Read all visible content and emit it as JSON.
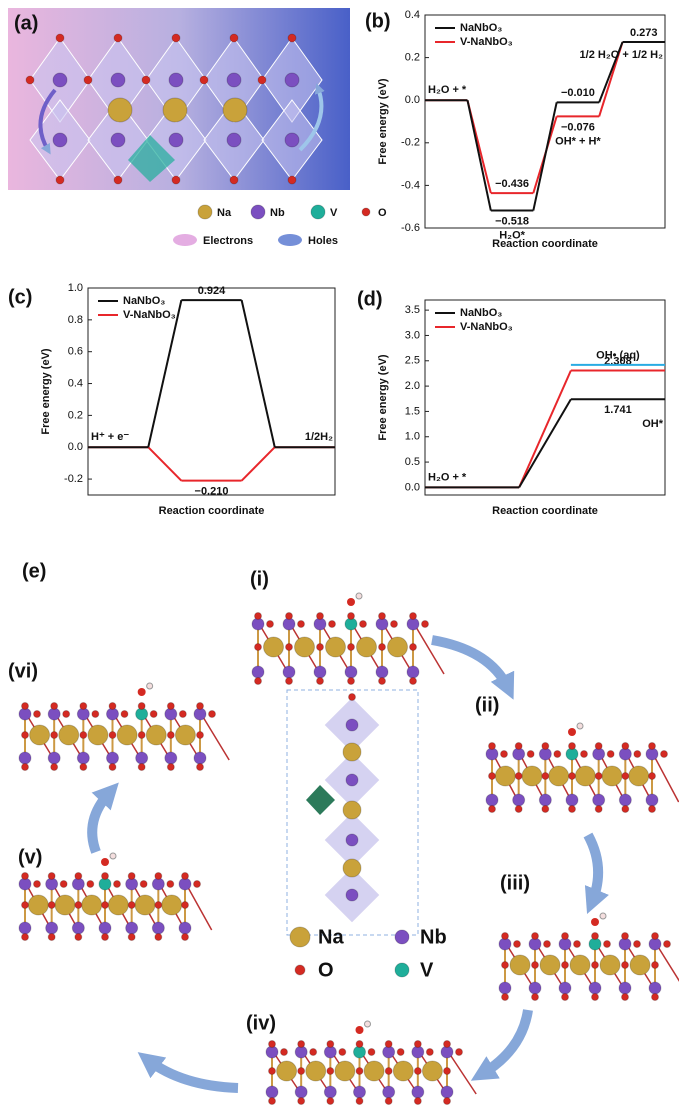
{
  "figure": {
    "a": {
      "label": "(a)",
      "legend": [
        "Na",
        "Nb",
        "V",
        "O"
      ],
      "carriers": [
        "Electrons",
        "Holes"
      ]
    },
    "e": {
      "label": "(e)",
      "steps": [
        "(i)",
        "(ii)",
        "(iii)",
        "(iv)",
        "(v)",
        "(vi)"
      ],
      "legend": [
        "Na",
        "Nb",
        "O",
        "V"
      ]
    }
  },
  "chart_data": [
    {
      "type": "step",
      "label": "(b)",
      "ylabel": "Free energy (eV)",
      "xlabel": "Reaction coordinate",
      "categories": [
        "H₂O + *",
        "H₂O*",
        "OH* + H*",
        "1/2 H₂O + 1/2 H₂"
      ],
      "series": [
        {
          "name": "NaNbO₃",
          "color": "#111111",
          "values": [
            0,
            -0.518,
            -0.01,
            0.273
          ],
          "value_labels": [
            null,
            "−0.518",
            "−0.010",
            "0.273"
          ]
        },
        {
          "name": "V-NaNbO₃",
          "color": "#e8262b",
          "values": [
            0,
            -0.436,
            -0.076,
            0.273
          ],
          "value_labels": [
            null,
            "−0.436",
            "−0.076",
            null
          ]
        }
      ],
      "ylim": [
        -0.6,
        0.4
      ],
      "yticks": [
        -0.6,
        -0.4,
        -0.2,
        {
          "value": 0,
          "label": "0.0"
        },
        0.2,
        0.4
      ],
      "legend": "upper left"
    },
    {
      "type": "step",
      "label": "(c)",
      "ylabel": "Free energy (eV)",
      "xlabel": "Reaction coordinate",
      "categories": [
        "H⁺ + e⁻",
        null,
        "1/2H₂"
      ],
      "series": [
        {
          "name": "NaNbO₃",
          "color": "#111111",
          "values": [
            0,
            0.924,
            0
          ],
          "value_labels": [
            null,
            "0.924",
            null
          ]
        },
        {
          "name": "V-NaNbO₃",
          "color": "#e8262b",
          "values": [
            0,
            -0.21,
            0
          ],
          "value_labels": [
            null,
            "−0.210",
            null
          ]
        }
      ],
      "ylim": [
        -0.3,
        1.0
      ],
      "yticks": [
        -0.2,
        {
          "value": 0,
          "label": "0.0"
        },
        0.2,
        0.4,
        0.6,
        0.8,
        {
          "value": 1,
          "label": "1.0"
        }
      ],
      "legend": "upper left"
    },
    {
      "type": "step",
      "label": "(d)",
      "ylabel": "Free energy (eV)",
      "xlabel": "Reaction coordinate",
      "categories": [
        "H₂O + *",
        "OH*"
      ],
      "series": [
        {
          "name": "NaNbO₃",
          "color": "#111111",
          "values": [
            0,
            1.741
          ],
          "value_labels": [
            null,
            "1.741"
          ]
        },
        {
          "name": "V-NaNbO₃",
          "color": "#e8262b",
          "values": [
            0,
            2.308
          ],
          "value_labels": [
            null,
            "2.308"
          ]
        }
      ],
      "references": [
        {
          "label": "OH• (aq)",
          "value": 2.42,
          "color": "#29abe2"
        }
      ],
      "ylim": [
        -0.15,
        3.7
      ],
      "yticks": [
        {
          "value": 0,
          "label": "0.0"
        },
        0.5,
        {
          "value": 1,
          "label": "1.0"
        },
        1.5,
        {
          "value": 2,
          "label": "2.0"
        },
        2.5,
        {
          "value": 3,
          "label": "3.0"
        },
        3.5
      ],
      "legend": "upper left"
    }
  ]
}
